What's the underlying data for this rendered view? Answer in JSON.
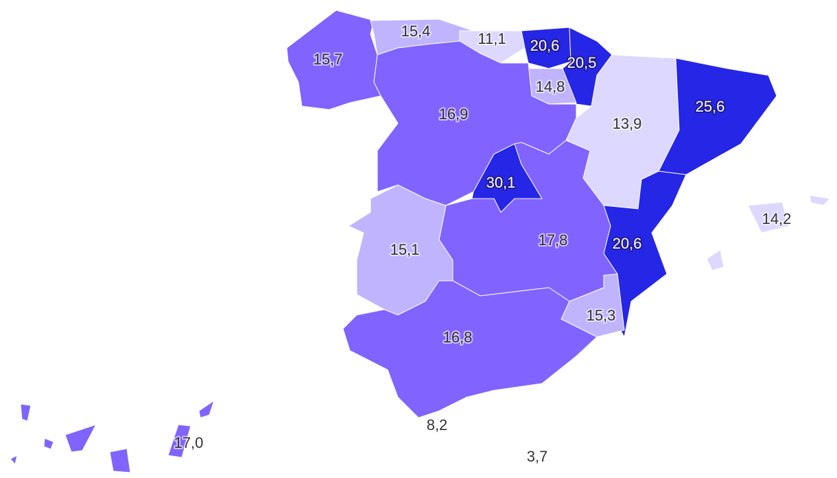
{
  "palette": {
    "level1": "#ddd8ff",
    "level2": "#c0b4ff",
    "level3": "#8163ff",
    "level4": "#2626e6"
  },
  "regions": [
    {
      "id": "galicia",
      "value": "15,7",
      "color": "#8163ff"
    },
    {
      "id": "asturias",
      "value": "15,4",
      "color": "#c0b4ff"
    },
    {
      "id": "cantabria",
      "value": "11,1",
      "color": "#ddd8ff"
    },
    {
      "id": "pais-vasco",
      "value": "20,6",
      "color": "#2626e6"
    },
    {
      "id": "navarra",
      "value": "20,5",
      "color": "#2626e6"
    },
    {
      "id": "la-rioja",
      "value": "14,8",
      "color": "#c0b4ff"
    },
    {
      "id": "aragon",
      "value": "13,9",
      "color": "#ddd8ff"
    },
    {
      "id": "cataluna",
      "value": "25,6",
      "color": "#2626e6"
    },
    {
      "id": "castilla-y-leon",
      "value": "16,9",
      "color": "#8163ff"
    },
    {
      "id": "madrid",
      "value": "30,1",
      "color": "#2626e6"
    },
    {
      "id": "castilla-la-mancha",
      "value": "17,8",
      "color": "#8163ff"
    },
    {
      "id": "extremadura",
      "value": "15,1",
      "color": "#c0b4ff"
    },
    {
      "id": "valencia",
      "value": "20,6",
      "color": "#2626e6"
    },
    {
      "id": "murcia",
      "value": "15,3",
      "color": "#c0b4ff"
    },
    {
      "id": "andalucia",
      "value": "16,8",
      "color": "#8163ff"
    },
    {
      "id": "baleares",
      "value": "14,2",
      "color": "#ddd8ff"
    },
    {
      "id": "canarias",
      "value": "17,0",
      "color": "#8163ff"
    },
    {
      "id": "ceuta",
      "value": "8,2",
      "color": "#ddd8ff"
    },
    {
      "id": "melilla",
      "value": "3,7",
      "color": "#ddd8ff"
    }
  ]
}
